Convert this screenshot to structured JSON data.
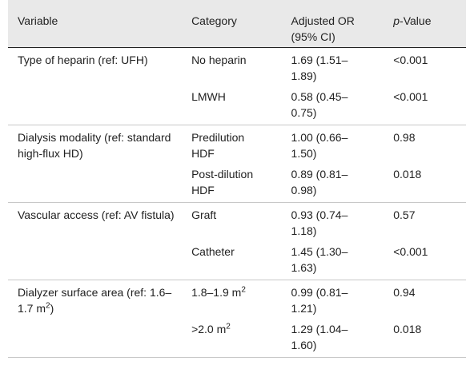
{
  "table": {
    "header": [
      "Variable",
      "Category",
      "Adjusted OR (95% CI)",
      {
        "italic": "p",
        "text": "-Value"
      }
    ],
    "groups": [
      {
        "variable": {
          "text": "Type of heparin (ref: UFH)"
        },
        "rows": [
          [
            {
              "text": "No heparin"
            },
            "1.69 (1.51–1.89)",
            "<0.001"
          ],
          [
            {
              "text": "LMWH"
            },
            "0.58 (0.45–0.75)",
            "<0.001"
          ]
        ]
      },
      {
        "variable": {
          "text": "Dialysis modality (ref: standard high-flux HD)"
        },
        "rows": [
          [
            {
              "text": "Predilution HDF"
            },
            "1.00 (0.66–1.50)",
            "0.98"
          ],
          [
            {
              "text": "Post-dilution HDF"
            },
            "0.89 (0.81–0.98)",
            "0.018"
          ]
        ]
      },
      {
        "variable": {
          "text": "Vascular access (ref: AV fistula)"
        },
        "rows": [
          [
            {
              "text": "Graft"
            },
            "0.93 (0.74–1.18)",
            "0.57"
          ],
          [
            {
              "text": "Catheter"
            },
            "1.45 (1.30–1.63)",
            "<0.001"
          ]
        ]
      },
      {
        "variable": {
          "text": "Dialyzer surface area (ref: 1.6–1.7 m",
          "sup": "2",
          "after": ")"
        },
        "rows": [
          [
            {
              "text": "1.8–1.9 m",
              "sup": "2"
            },
            "0.99 (0.81–1.21)",
            "0.94"
          ],
          [
            {
              "text": ">2.0 m",
              "sup": "2"
            },
            "1.29 (1.04–1.60)",
            "0.018"
          ]
        ]
      }
    ]
  }
}
